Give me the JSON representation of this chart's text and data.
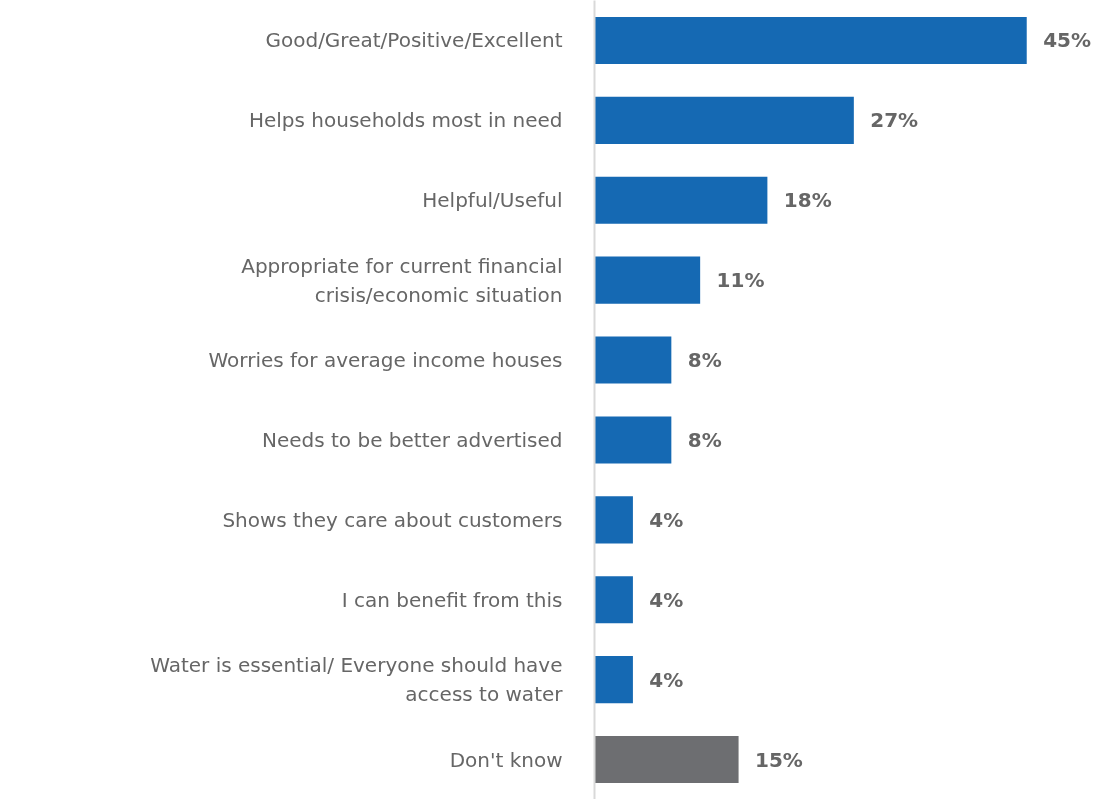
{
  "chart_data": {
    "type": "bar",
    "orientation": "horizontal",
    "categories": [
      "Good/Great/Positive/Excellent",
      "Helps households most in need",
      "Helpful/Useful",
      "Appropriate for current financial crisis/economic situation",
      "Worries for average income houses",
      "Needs to be better advertised",
      "Shows they care about customers",
      "I can benefit from this",
      "Water is essential/ Everyone should have access to water",
      "Don't know"
    ],
    "values": [
      45,
      27,
      18,
      11,
      8,
      8,
      4,
      4,
      4,
      15
    ],
    "value_labels": [
      "45%",
      "27%",
      "18%",
      "11%",
      "8%",
      "8%",
      "4%",
      "4%",
      "4%",
      "15%"
    ],
    "colors": [
      "#1569b3",
      "#1569b3",
      "#1569b3",
      "#1569b3",
      "#1569b3",
      "#1569b3",
      "#1569b3",
      "#1569b3",
      "#1569b3",
      "#6d6e71"
    ],
    "grid": false
  }
}
